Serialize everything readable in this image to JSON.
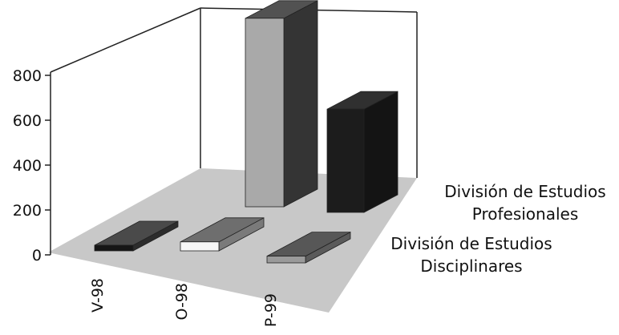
{
  "chart_data": {
    "type": "bar",
    "title": "",
    "xlabel": "",
    "ylabel": "",
    "ylim": [
      0,
      800
    ],
    "yticks": [
      "800",
      "600",
      "400",
      "200",
      "0"
    ],
    "categories": [
      "V-98",
      "O-98",
      "P-99"
    ],
    "series": [
      {
        "name": "División de Estudios Disciplinares",
        "name_lines": [
          "División de Estudios",
          "Disciplinares"
        ],
        "values": [
          5,
          40,
          30
        ]
      },
      {
        "name": "División de Estudios Profesionales",
        "name_lines": [
          "División de Estudios",
          "Profesionales"
        ],
        "values": [
          0,
          840,
          460
        ]
      }
    ],
    "grid": false,
    "legend": "none; series names printed at the right end of each row"
  }
}
